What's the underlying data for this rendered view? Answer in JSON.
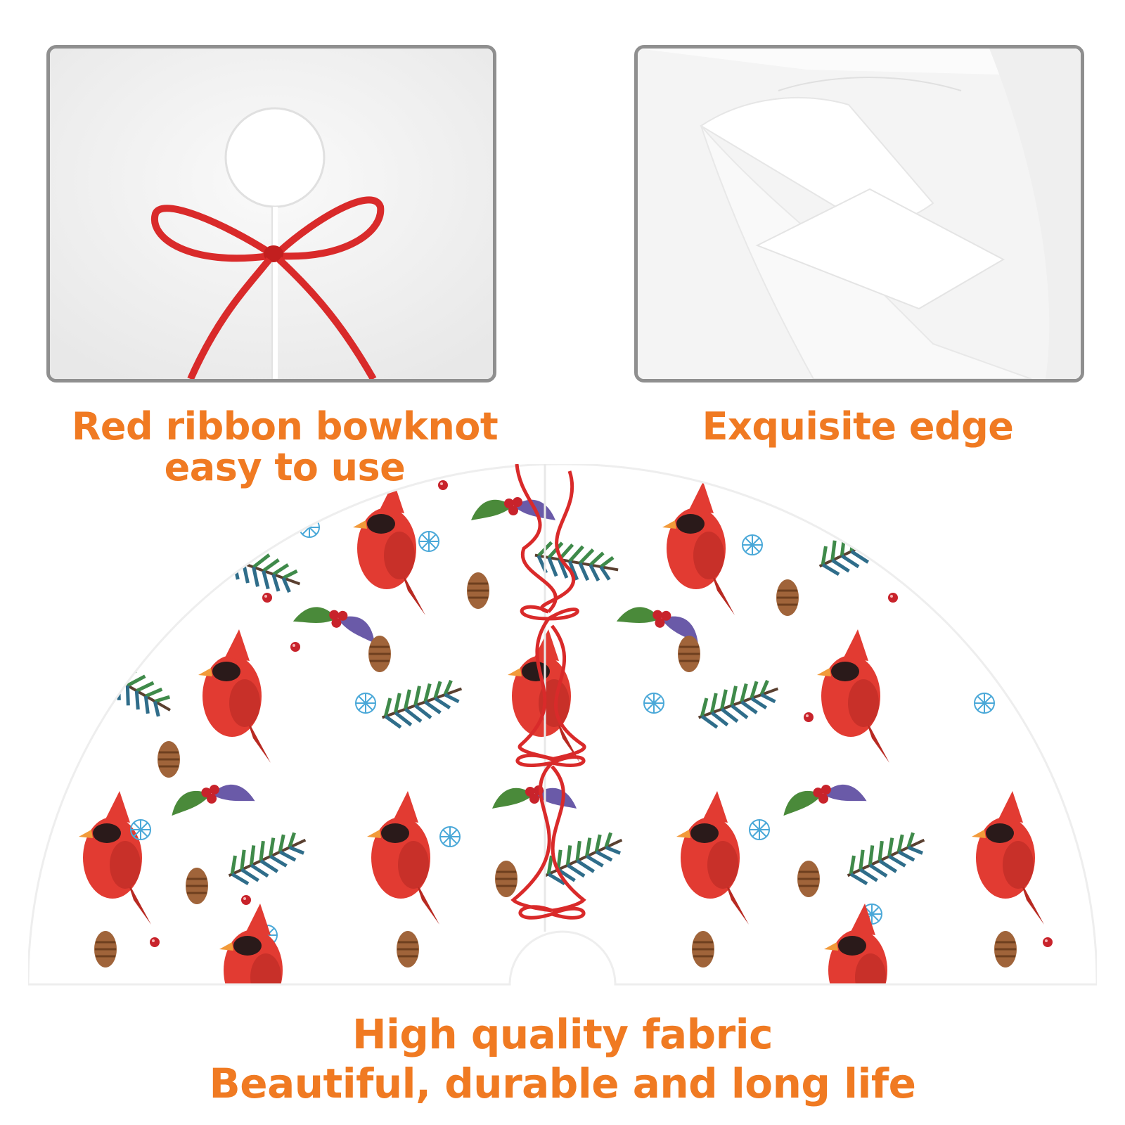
{
  "captions": {
    "ribbon": {
      "line1": "Red ribbon bowknot",
      "line2": "easy to use"
    },
    "edge": {
      "line1": "Exquisite edge"
    },
    "fabric": {
      "line1": "High quality fabric",
      "line2": "Beautiful, durable and long life"
    }
  },
  "colors": {
    "caption_text": "#f07a22",
    "panel_border": "#8f8f8f",
    "ribbon_red": "#d92a2a",
    "cardinal_red": "#e23b32",
    "pine_green": "#3f8a4a",
    "snowflake_blue": "#4aa8d8",
    "pinecone_brown": "#a0643a"
  },
  "icons": [
    "ribbon-bow-icon",
    "cardinal-icon",
    "pine-branch-icon",
    "pinecone-icon",
    "snowflake-icon",
    "berry-icon",
    "holly-icon"
  ]
}
